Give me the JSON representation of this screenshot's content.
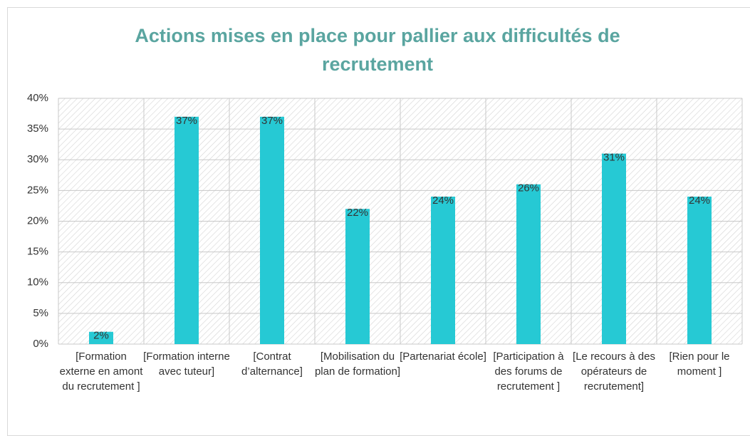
{
  "chart_data": {
    "type": "bar",
    "title": "Actions mises en place pour pallier aux difficultés de recrutement",
    "categories": [
      "[Formation externe en amont du recrutement ]",
      "[Formation interne avec tuteur]",
      "[Contrat d’alternance]",
      "[Mobilisation du plan de formation]",
      "[Partenariat école]",
      "[Participation à des forums de recrutement ]",
      "[Le recours à des opérateurs de recrutement]",
      "[Rien pour le moment ]"
    ],
    "values": [
      2,
      37,
      37,
      22,
      24,
      26,
      31,
      24
    ],
    "value_labels": [
      "2%",
      "37%",
      "37%",
      "22%",
      "24%",
      "26%",
      "31%",
      "24%"
    ],
    "color": "#26c9d4",
    "ylim": [
      0,
      40
    ],
    "yticks": [
      {
        "value": 0,
        "label": "0%"
      },
      {
        "value": 5,
        "label": "5%"
      },
      {
        "value": 10,
        "label": "10%"
      },
      {
        "value": 15,
        "label": "15%"
      },
      {
        "value": 20,
        "label": "20%"
      },
      {
        "value": 25,
        "label": "25%"
      },
      {
        "value": 30,
        "label": "30%"
      },
      {
        "value": 35,
        "label": "35%"
      },
      {
        "value": 40,
        "label": "40%"
      }
    ],
    "grid": true
  }
}
